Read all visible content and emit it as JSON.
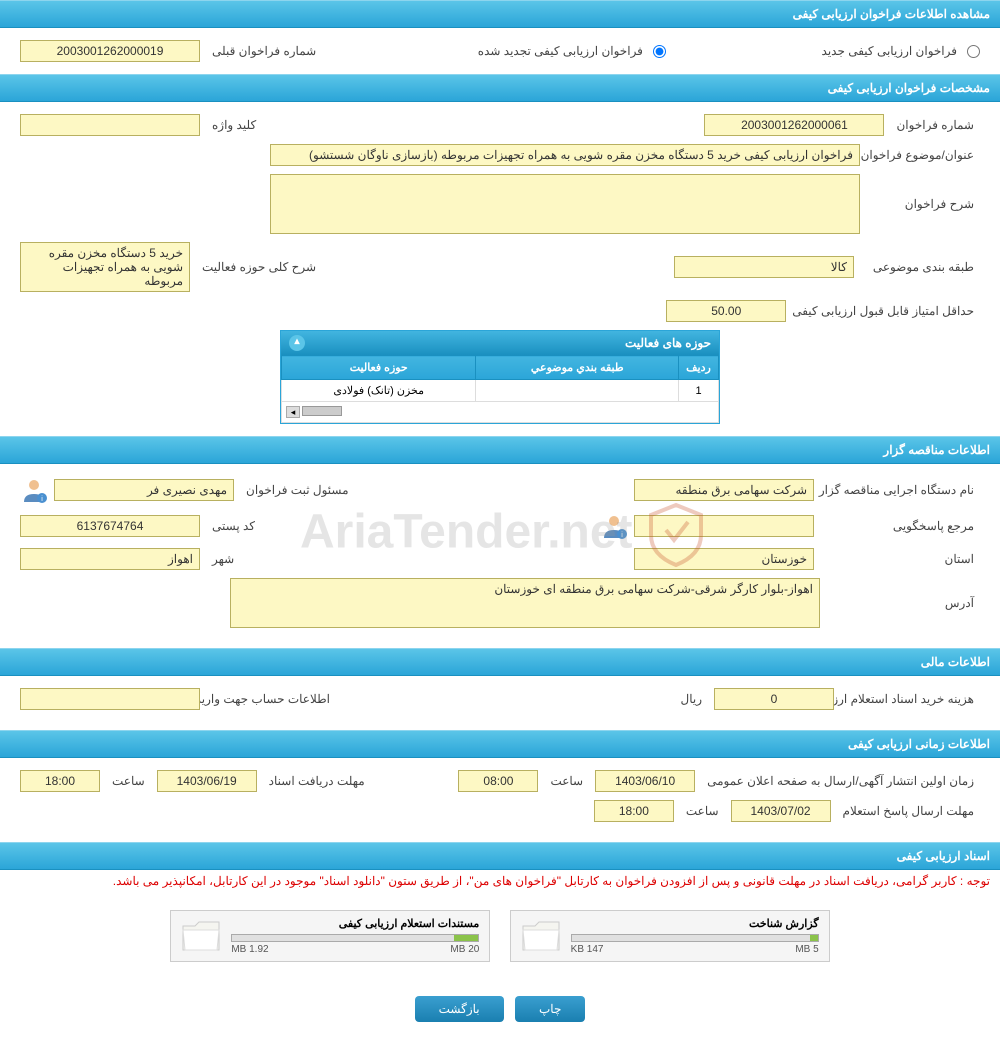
{
  "sections": {
    "view_info": "مشاهده اطلاعات فراخوان ارزیابی کیفی",
    "specs": "مشخصات فراخوان ارزیابی کیفی",
    "tender_org": "اطلاعات مناقصه گزار",
    "financial": "اطلاعات مالی",
    "schedule": "اطلاعات زمانی ارزیابی کیفی",
    "docs": "اسناد ارزیابی کیفی"
  },
  "top": {
    "new_label": "فراخوان ارزیابی کیفی جدید",
    "renewed_label": "فراخوان ارزیابی کیفی تجدید شده",
    "prev_number_label": "شماره فراخوان قبلی",
    "prev_number": "2003001262000019"
  },
  "specs": {
    "number_label": "شماره فراخوان",
    "number": "2003001262000061",
    "keyword_label": "کلید واژه",
    "keyword": "",
    "title_label": "عنوان/موضوع فراخوان",
    "title": "فراخوان ارزیابی کیفی خرید 5 دستگاه مخزن مقره شویی به همراه تجهیزات مربوطه (بازسازی ناوگان شستشو)",
    "desc_label": "شرح فراخوان",
    "desc": "",
    "category_label": "طبقه بندی موضوعی",
    "category": "کالا",
    "activity_scope_label": "شرح کلی حوزه فعالیت",
    "activity_scope": "خرید 5 دستگاه مخزن مقره شویی به همراه تجهیزات مربوطه",
    "min_score_label": "حداقل امتیاز قابل قبول ارزیابی کیفی",
    "min_score": "50.00",
    "table_title": "حوزه های فعالیت",
    "th_row": "ردیف",
    "th_category": "طبقه بندي موضوعي",
    "th_scope": "حوزه فعالیت",
    "row1_num": "1",
    "row1_cat": "",
    "row1_scope": "مخزن (تانک) فولادی"
  },
  "org": {
    "exec_label": "نام دستگاه اجرایی مناقصه گزار",
    "exec": "شرکت سهامی برق منطقه",
    "reg_officer_label": "مسئول ثبت فراخوان",
    "reg_officer": "مهدی نصیری فر",
    "responder_label": "مرجع پاسخگویی",
    "responder": "",
    "postal_label": "کد پستی",
    "postal": "6137674764",
    "province_label": "استان",
    "province": "خوزستان",
    "city_label": "شهر",
    "city": "اهواز",
    "address_label": "آدرس",
    "address": "اهواز-بلوار کارگر شرقی-شرکت سهامی برق منطقه ای خوزستان"
  },
  "fin": {
    "doc_cost_label": "هزینه خرید اسناد استعلام ارزیابی کیفی",
    "doc_cost": "0",
    "rial": "ریال",
    "account_label": "اطلاعات حساب جهت واریز هزینه خرید اسناد",
    "account": ""
  },
  "sched": {
    "publish_label": "زمان اولین انتشار آگهی/ارسال به صفحه اعلان عمومی",
    "publish_date": "1403/06/10",
    "publish_time": "08:00",
    "receive_label": "مهلت دریافت اسناد",
    "receive_date": "1403/06/19",
    "receive_time": "18:00",
    "response_label": "مهلت ارسال پاسخ استعلام",
    "response_date": "1403/07/02",
    "response_time": "18:00",
    "time_label": "ساعت"
  },
  "docs": {
    "notice": "توجه : کاربر گرامی، دریافت اسناد در مهلت قانونی و پس از افزودن فراخوان به کارتابل \"فراخوان های من\"، از طریق ستون \"دانلود اسناد\" موجود در این کارتابل، امکانپذیر می باشد.",
    "file1_name": "گزارش شناخت",
    "file1_used": "147 KB",
    "file1_total": "5 MB",
    "file1_pct": 3,
    "file2_name": "مستندات استعلام ارزیابی کیفی",
    "file2_used": "1.92 MB",
    "file2_total": "20 MB",
    "file2_pct": 10
  },
  "buttons": {
    "print": "چاپ",
    "back": "بازگشت"
  },
  "colors": {
    "header_grad_top": "#5bc5e8",
    "header_grad_bot": "#2ba5d8",
    "field_bg": "#fdf8c4",
    "field_border": "#b8b060"
  }
}
